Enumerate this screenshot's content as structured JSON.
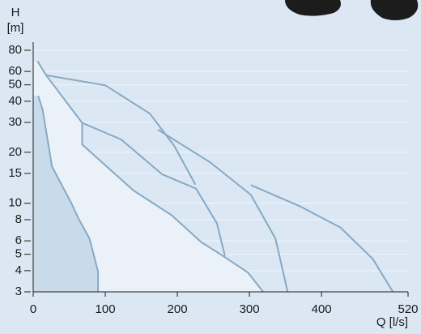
{
  "chart_data": {
    "type": "line",
    "y_label": "H",
    "y_unit": "[m]",
    "x_label": "Q [l/s]",
    "xlim": [
      0,
      520
    ],
    "xticks": [
      0,
      100,
      200,
      300,
      400,
      520
    ],
    "ylim": [
      3,
      80
    ],
    "yticks": [
      3,
      4,
      5,
      6,
      8,
      10,
      15,
      20,
      30,
      40,
      50,
      60,
      80
    ],
    "yscale": "log",
    "grid": true,
    "series": [
      {
        "color": "#86a9c4",
        "fill": "#eaf1f8",
        "x": [
          6,
          18,
          68,
          68,
          139,
          192,
          233,
          266,
          298,
          319
        ],
        "values": [
          69,
          57,
          29.8,
          22.2,
          11.9,
          8.5,
          5.9,
          4.8,
          3.9,
          3
        ]
      },
      {
        "color": "#86a9c4",
        "fill": "#c9dbea",
        "x": [
          7,
          13,
          26,
          53,
          63,
          78,
          90,
          90
        ],
        "values": [
          43,
          35.7,
          16.5,
          10,
          8.1,
          6.2,
          3.95,
          3
        ]
      },
      {
        "color": "#86a9c4",
        "x": [
          18,
          100,
          162,
          196,
          225
        ],
        "values": [
          57,
          49.7,
          33.8,
          21.7,
          12.9
        ]
      },
      {
        "color": "#86a9c4",
        "x": [
          68,
          122,
          179,
          226,
          255,
          266
        ],
        "values": [
          29.8,
          23.8,
          14.8,
          12.2,
          7.6,
          4.9
        ]
      },
      {
        "color": "#86a9c4",
        "x": [
          173,
          246,
          302,
          336,
          353
        ],
        "values": [
          27.2,
          17.4,
          11.2,
          6.2,
          3
        ]
      },
      {
        "color": "#86a9c4",
        "x": [
          302,
          370,
          426,
          471,
          499
        ],
        "values": [
          12.8,
          9.6,
          7.2,
          4.7,
          3
        ]
      }
    ]
  }
}
